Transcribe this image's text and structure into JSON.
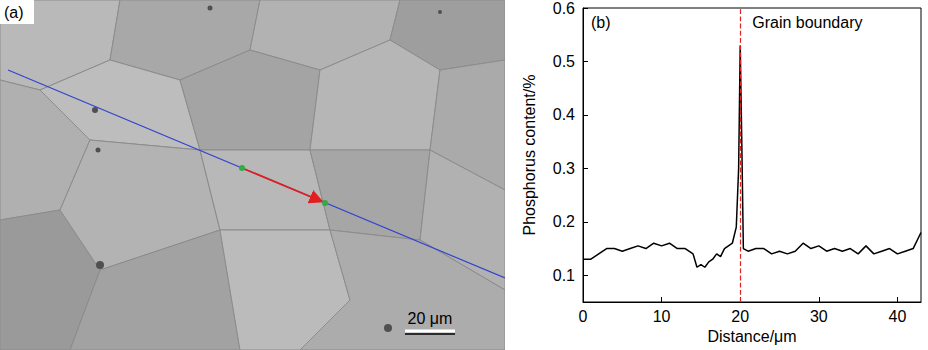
{
  "micrograph": {
    "panel_label": "(a)",
    "scale_bar": "20 μm"
  },
  "chart_data": {
    "type": "line",
    "panel_label": "(b)",
    "x_label": "Distance/μm",
    "y_label": "Phosphorus content/%",
    "x": [
      0,
      1,
      2,
      3,
      4,
      5,
      6,
      7,
      8,
      9,
      10,
      11,
      12,
      13,
      14,
      14.5,
      15,
      15.5,
      16,
      16.5,
      17,
      17.5,
      18,
      18.5,
      19,
      19.5,
      19.8,
      20,
      20.2,
      20.4,
      21,
      22,
      23,
      24,
      25,
      26,
      27,
      28,
      29,
      30,
      31,
      32,
      33,
      34,
      35,
      36,
      37,
      38,
      39,
      40,
      41,
      42,
      43
    ],
    "values": [
      0.13,
      0.13,
      0.14,
      0.15,
      0.15,
      0.145,
      0.15,
      0.155,
      0.15,
      0.16,
      0.155,
      0.16,
      0.15,
      0.15,
      0.14,
      0.115,
      0.12,
      0.115,
      0.125,
      0.13,
      0.14,
      0.135,
      0.15,
      0.155,
      0.16,
      0.19,
      0.3,
      0.53,
      0.35,
      0.15,
      0.145,
      0.15,
      0.15,
      0.14,
      0.145,
      0.14,
      0.145,
      0.16,
      0.15,
      0.155,
      0.145,
      0.15,
      0.145,
      0.15,
      0.14,
      0.155,
      0.14,
      0.145,
      0.15,
      0.14,
      0.145,
      0.15,
      0.18
    ],
    "color": "#000000",
    "xlim": [
      0,
      43
    ],
    "ylim": [
      0.05,
      0.6
    ],
    "xticks": [
      0,
      10,
      20,
      30,
      40
    ],
    "yticks": [
      0.1,
      0.2,
      0.3,
      0.4,
      0.5,
      0.6
    ],
    "grid": false,
    "annotations": [
      {
        "text": "Grain boundary",
        "x": 20,
        "color": "#e02020",
        "line_style": "dashed"
      }
    ]
  }
}
